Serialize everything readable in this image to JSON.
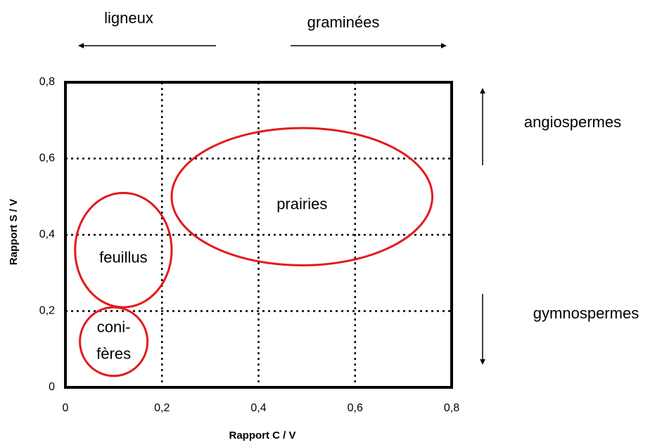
{
  "chart_data": {
    "type": "region",
    "xlabel": "Rapport C / V",
    "ylabel": "Rapport S / V",
    "xlim": [
      0,
      0.8
    ],
    "ylim": [
      0,
      0.8
    ],
    "xticks": [
      {
        "value": 0,
        "label": "0"
      },
      {
        "value": 0.2,
        "label": "0,2"
      },
      {
        "value": 0.4,
        "label": "0,4"
      },
      {
        "value": 0.6,
        "label": "0,6"
      },
      {
        "value": 0.8,
        "label": "0,8"
      }
    ],
    "yticks": [
      {
        "value": 0,
        "label": "0"
      },
      {
        "value": 0.2,
        "label": "0,2"
      },
      {
        "value": 0.4,
        "label": "0,4"
      },
      {
        "value": 0.6,
        "label": "0,6"
      },
      {
        "value": 0.8,
        "label": "0,8"
      }
    ],
    "grid": true,
    "color": "#e31a1c",
    "regions": [
      {
        "label": [
          "prairies"
        ],
        "cx": 0.49,
        "cy": 0.5,
        "rx": 0.27,
        "ry": 0.18
      },
      {
        "label": [
          "feuillus"
        ],
        "cx": 0.12,
        "cy": 0.36,
        "rx": 0.1,
        "ry": 0.15
      },
      {
        "label": [
          "coni-",
          "fères"
        ],
        "cx": 0.1,
        "cy": 0.12,
        "rx": 0.07,
        "ry": 0.09
      }
    ],
    "annotations": [
      "ligneux",
      "graminées",
      "angiospermes",
      "gymnospermes"
    ]
  }
}
